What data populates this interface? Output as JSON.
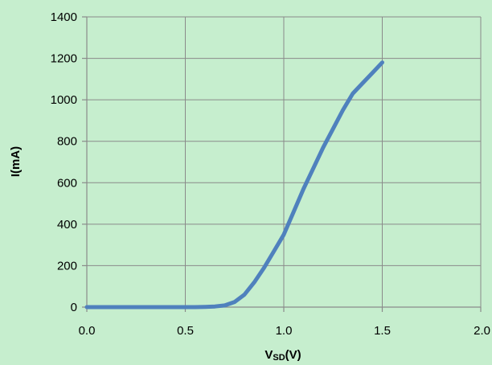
{
  "chart_data": {
    "type": "line",
    "xlabel": "VSD(V)",
    "xlabel_main": "V",
    "xlabel_sub": "SD",
    "xlabel_unit": "(V)",
    "ylabel": "I(mA)",
    "xlim": [
      0,
      2
    ],
    "ylim": [
      0,
      1400
    ],
    "x_ticks": [
      0,
      0.5,
      1,
      1.5,
      2
    ],
    "x_tick_labels": [
      "0.0",
      "0.5",
      "1.0",
      "1.5",
      "2.0"
    ],
    "y_ticks": [
      0,
      200,
      400,
      600,
      800,
      1000,
      1200,
      1400
    ],
    "y_tick_labels": [
      "0",
      "200",
      "400",
      "600",
      "800",
      "1000",
      "1200",
      "1400"
    ],
    "grid": true,
    "legend": "none",
    "series": [
      {
        "color": "#4f81bd",
        "points": [
          [
            0.0,
            0
          ],
          [
            0.1,
            0
          ],
          [
            0.2,
            0
          ],
          [
            0.3,
            0
          ],
          [
            0.4,
            0
          ],
          [
            0.5,
            0
          ],
          [
            0.55,
            0
          ],
          [
            0.6,
            1
          ],
          [
            0.65,
            3
          ],
          [
            0.7,
            8
          ],
          [
            0.75,
            25
          ],
          [
            0.8,
            60
          ],
          [
            0.85,
            120
          ],
          [
            0.9,
            190
          ],
          [
            0.95,
            270
          ],
          [
            1.0,
            350
          ],
          [
            1.05,
            460
          ],
          [
            1.1,
            570
          ],
          [
            1.15,
            670
          ],
          [
            1.2,
            770
          ],
          [
            1.25,
            860
          ],
          [
            1.3,
            950
          ],
          [
            1.35,
            1030
          ],
          [
            1.4,
            1080
          ],
          [
            1.45,
            1130
          ],
          [
            1.5,
            1180
          ]
        ]
      }
    ]
  }
}
